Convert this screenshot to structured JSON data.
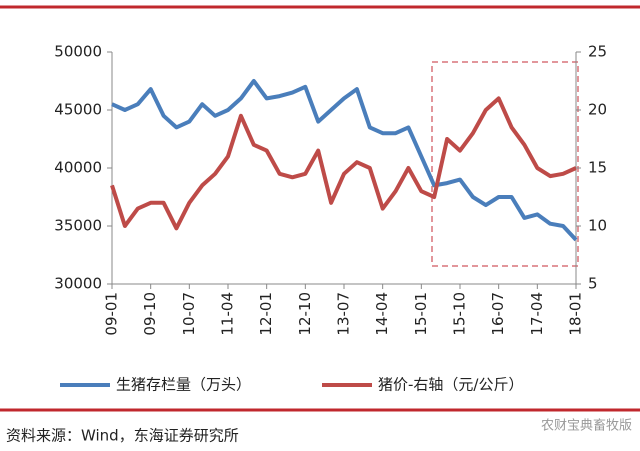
{
  "chart_data": {
    "type": "line",
    "categories": [
      "09-01",
      null,
      null,
      "09-10",
      null,
      null,
      "10-07",
      null,
      null,
      "11-04",
      null,
      null,
      "12-01",
      null,
      null,
      "12-10",
      null,
      null,
      "13-07",
      null,
      null,
      "14-04",
      null,
      null,
      "15-01",
      null,
      null,
      "15-10",
      null,
      null,
      "16-07",
      null,
      null,
      "17-04",
      null,
      null,
      "18-01"
    ],
    "series": [
      {
        "name": "生猪存栏量（万头）",
        "color": "#4a7ebb",
        "axis": "y",
        "values": [
          45500,
          45000,
          45500,
          46800,
          44500,
          43500,
          44000,
          45500,
          44500,
          45000,
          46000,
          47500,
          46000,
          46200,
          46500,
          47000,
          44000,
          45000,
          46000,
          46800,
          43500,
          43000,
          43000,
          43500,
          41000,
          38500,
          38700,
          39000,
          37500,
          36800,
          37500,
          37500,
          35700,
          36000,
          35200,
          35000,
          33800
        ]
      },
      {
        "name": "猪价-右轴（元/公斤）",
        "color": "#be4b48",
        "axis": "y2",
        "values": [
          13.5,
          10,
          11.5,
          12,
          12,
          9.8,
          12,
          13.5,
          14.5,
          16,
          19.5,
          17,
          16.5,
          14.5,
          14.2,
          14.5,
          16.5,
          12,
          14.5,
          15.5,
          15,
          11.5,
          13,
          15,
          13,
          12.5,
          17.5,
          16.5,
          18,
          20,
          21,
          18.5,
          17,
          15,
          14.3,
          14.5,
          15
        ]
      }
    ],
    "ylim": [
      30000,
      50000
    ],
    "yticks": [
      30000,
      35000,
      40000,
      45000,
      50000
    ],
    "y2lim": [
      5,
      25
    ],
    "y2ticks": [
      5,
      10,
      15,
      20,
      25
    ],
    "legend": "bottom",
    "source": "资料来源：Wind，东海证券研究所",
    "watermark": "农财宝典畜牧版"
  }
}
